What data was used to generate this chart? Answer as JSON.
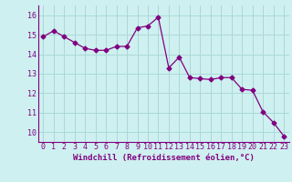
{
  "x": [
    0,
    1,
    2,
    3,
    4,
    5,
    6,
    7,
    8,
    9,
    10,
    11,
    12,
    13,
    14,
    15,
    16,
    17,
    18,
    19,
    20,
    21,
    22,
    23
  ],
  "y": [
    14.9,
    15.2,
    14.9,
    14.6,
    14.3,
    14.2,
    14.2,
    14.4,
    14.4,
    15.35,
    15.45,
    15.9,
    13.3,
    13.85,
    12.8,
    12.75,
    12.7,
    12.8,
    12.8,
    12.2,
    12.15,
    11.05,
    10.5,
    9.8
  ],
  "line_color": "#800080",
  "marker": "D",
  "marker_size": 2.5,
  "bg_color": "#cff0f0",
  "grid_color": "#aad8d8",
  "xlabel": "Windchill (Refroidissement éolien,°C)",
  "xlabel_color": "#800080",
  "xlabel_fontsize": 6.5,
  "tick_color": "#800080",
  "tick_fontsize": 6.0,
  "ylim": [
    9.5,
    16.5
  ],
  "xlim": [
    -0.5,
    23.5
  ],
  "yticks": [
    10,
    11,
    12,
    13,
    14,
    15,
    16
  ],
  "xticks": [
    0,
    1,
    2,
    3,
    4,
    5,
    6,
    7,
    8,
    9,
    10,
    11,
    12,
    13,
    14,
    15,
    16,
    17,
    18,
    19,
    20,
    21,
    22,
    23
  ]
}
